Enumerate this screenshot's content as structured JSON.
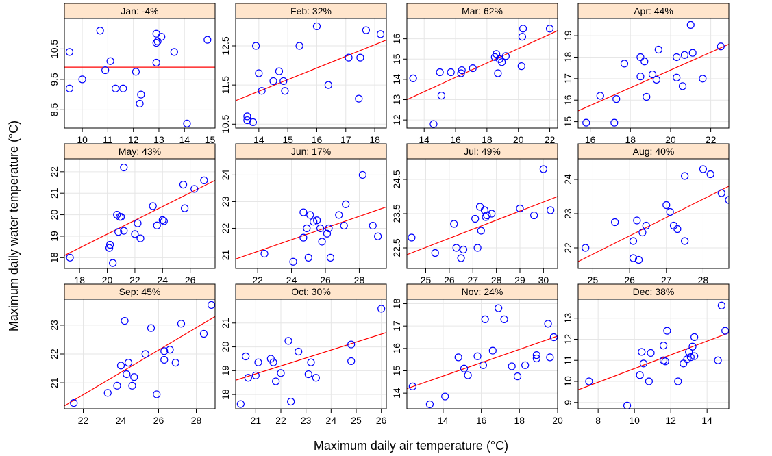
{
  "xlabel": "Maximum daily air temperature (°C)",
  "ylabel": "Maximum daily water temperature (°C)",
  "colors": {
    "strip": "#ffe5cc",
    "point": "#0000ff",
    "fit_line": "#ff0000",
    "grid": "#e6e6e6"
  },
  "chart_data": [
    {
      "type": "scatter",
      "title": "Jan: -4%",
      "xlim": [
        9.3,
        15.2
      ],
      "ylim": [
        7.9,
        11.5
      ],
      "xticks": [
        10,
        11,
        12,
        13,
        14,
        15
      ],
      "yticks": [
        8.5,
        9.5,
        10.5
      ],
      "points": [
        [
          10.7,
          11.1
        ],
        [
          9.5,
          10.4
        ],
        [
          13.6,
          10.4
        ],
        [
          14.9,
          10.8
        ],
        [
          12.9,
          11.0
        ],
        [
          13.1,
          10.9
        ],
        [
          12.9,
          10.7
        ],
        [
          12.95,
          10.75
        ],
        [
          11.1,
          10.1
        ],
        [
          12.9,
          10.05
        ],
        [
          10.9,
          9.8
        ],
        [
          12.1,
          9.75
        ],
        [
          10.0,
          9.5
        ],
        [
          9.5,
          9.2
        ],
        [
          11.3,
          9.2
        ],
        [
          11.6,
          9.2
        ],
        [
          12.3,
          9.0
        ],
        [
          12.25,
          8.7
        ],
        [
          14.1,
          8.05
        ]
      ],
      "fit": [
        [
          9.3,
          9.9
        ],
        [
          15.2,
          9.9
        ]
      ]
    },
    {
      "type": "scatter",
      "title": "Feb: 32%",
      "xlim": [
        13.2,
        18.4
      ],
      "ylim": [
        10.4,
        13.2
      ],
      "xticks": [
        14,
        15,
        16,
        17,
        18
      ],
      "yticks": [
        10.5,
        11.5,
        12.5
      ],
      "points": [
        [
          16.0,
          13.0
        ],
        [
          17.7,
          12.9
        ],
        [
          18.2,
          12.8
        ],
        [
          13.9,
          12.5
        ],
        [
          15.4,
          12.5
        ],
        [
          17.1,
          12.2
        ],
        [
          17.5,
          12.2
        ],
        [
          14.0,
          11.8
        ],
        [
          14.7,
          11.85
        ],
        [
          14.5,
          11.6
        ],
        [
          14.85,
          11.6
        ],
        [
          16.4,
          11.5
        ],
        [
          14.1,
          11.35
        ],
        [
          14.9,
          11.35
        ],
        [
          17.45,
          11.15
        ],
        [
          13.6,
          10.7
        ],
        [
          13.6,
          10.6
        ],
        [
          13.8,
          10.55
        ]
      ],
      "fit": [
        [
          13.2,
          11.1
        ],
        [
          18.4,
          12.65
        ]
      ]
    },
    {
      "type": "scatter",
      "title": "Mar: 62%",
      "xlim": [
        12.9,
        22.5
      ],
      "ylim": [
        11.6,
        17.0
      ],
      "xticks": [
        14,
        16,
        18,
        20,
        22
      ],
      "yticks": [
        12,
        13,
        14,
        15,
        16
      ],
      "points": [
        [
          20.3,
          16.5
        ],
        [
          22.0,
          16.5
        ],
        [
          20.25,
          16.1
        ],
        [
          18.6,
          15.25
        ],
        [
          18.5,
          15.1
        ],
        [
          19.2,
          15.15
        ],
        [
          18.8,
          15.0
        ],
        [
          18.95,
          14.85
        ],
        [
          20.2,
          14.65
        ],
        [
          17.1,
          14.55
        ],
        [
          16.4,
          14.45
        ],
        [
          15.7,
          14.35
        ],
        [
          15.0,
          14.35
        ],
        [
          16.35,
          14.3
        ],
        [
          18.7,
          14.3
        ],
        [
          13.3,
          14.05
        ],
        [
          15.1,
          13.2
        ],
        [
          14.6,
          11.8
        ]
      ],
      "fit": [
        [
          12.9,
          13.0
        ],
        [
          22.5,
          16.4
        ]
      ]
    },
    {
      "type": "scatter",
      "title": "Apr: 44%",
      "xlim": [
        15.4,
        22.9
      ],
      "ylim": [
        14.7,
        19.8
      ],
      "xticks": [
        16,
        18,
        20,
        22
      ],
      "yticks": [
        15,
        16,
        17,
        18,
        19
      ],
      "points": [
        [
          21.0,
          19.5
        ],
        [
          22.5,
          18.5
        ],
        [
          19.4,
          18.35
        ],
        [
          21.1,
          18.2
        ],
        [
          20.7,
          18.1
        ],
        [
          20.3,
          18.0
        ],
        [
          18.5,
          18.0
        ],
        [
          18.7,
          17.8
        ],
        [
          17.7,
          17.7
        ],
        [
          18.5,
          17.1
        ],
        [
          19.1,
          17.2
        ],
        [
          19.3,
          16.95
        ],
        [
          20.3,
          17.05
        ],
        [
          21.6,
          17.0
        ],
        [
          20.6,
          16.65
        ],
        [
          16.5,
          16.2
        ],
        [
          17.3,
          16.05
        ],
        [
          18.8,
          16.15
        ],
        [
          15.8,
          14.95
        ],
        [
          17.2,
          14.95
        ]
      ],
      "fit": [
        [
          15.4,
          15.5
        ],
        [
          22.9,
          18.6
        ]
      ]
    },
    {
      "type": "scatter",
      "title": "May: 43%",
      "xlim": [
        16.9,
        27.8
      ],
      "ylim": [
        17.5,
        22.6
      ],
      "xticks": [
        18,
        20,
        22,
        24,
        26
      ],
      "yticks": [
        18,
        19,
        20,
        21,
        22
      ],
      "points": [
        [
          21.2,
          22.2
        ],
        [
          27.0,
          21.6
        ],
        [
          25.5,
          21.4
        ],
        [
          26.3,
          21.2
        ],
        [
          23.3,
          20.4
        ],
        [
          25.6,
          20.3
        ],
        [
          20.7,
          20.0
        ],
        [
          21.0,
          19.9
        ],
        [
          20.9,
          19.9
        ],
        [
          22.2,
          19.6
        ],
        [
          24.1,
          19.7
        ],
        [
          24.0,
          19.75
        ],
        [
          23.6,
          19.5
        ],
        [
          21.2,
          19.25
        ],
        [
          20.8,
          19.2
        ],
        [
          22.0,
          19.1
        ],
        [
          22.4,
          18.9
        ],
        [
          20.2,
          18.6
        ],
        [
          20.15,
          18.45
        ],
        [
          17.3,
          18.0
        ],
        [
          20.4,
          17.75
        ]
      ],
      "fit": [
        [
          16.9,
          18.1
        ],
        [
          27.8,
          21.6
        ]
      ]
    },
    {
      "type": "scatter",
      "title": "Jun: 17%",
      "xlim": [
        20.7,
        29.6
      ],
      "ylim": [
        20.5,
        24.6
      ],
      "xticks": [
        22,
        24,
        26,
        28
      ],
      "yticks": [
        21,
        22,
        23,
        24
      ],
      "points": [
        [
          28.2,
          24.0
        ],
        [
          27.2,
          22.9
        ],
        [
          24.7,
          22.6
        ],
        [
          25.1,
          22.5
        ],
        [
          26.8,
          22.5
        ],
        [
          25.5,
          22.3
        ],
        [
          25.3,
          22.25
        ],
        [
          24.9,
          22.0
        ],
        [
          25.7,
          22.0
        ],
        [
          26.2,
          22.0
        ],
        [
          27.1,
          22.1
        ],
        [
          28.8,
          22.1
        ],
        [
          26.1,
          21.8
        ],
        [
          24.7,
          21.65
        ],
        [
          25.8,
          21.5
        ],
        [
          29.1,
          21.7
        ],
        [
          22.4,
          21.05
        ],
        [
          25.0,
          20.9
        ],
        [
          26.3,
          20.9
        ],
        [
          24.1,
          20.75
        ]
      ],
      "fit": [
        [
          20.7,
          20.85
        ],
        [
          29.6,
          22.8
        ]
      ]
    },
    {
      "type": "scatter",
      "title": "Jul: 49%",
      "xlim": [
        24.2,
        30.6
      ],
      "ylim": [
        21.9,
        25.1
      ],
      "xticks": [
        25,
        26,
        27,
        28,
        29,
        30
      ],
      "yticks": [
        22.5,
        23.5,
        24.5
      ],
      "points": [
        [
          30.0,
          24.8
        ],
        [
          29.0,
          23.65
        ],
        [
          30.3,
          23.6
        ],
        [
          27.3,
          23.7
        ],
        [
          27.5,
          23.6
        ],
        [
          27.8,
          23.5
        ],
        [
          27.6,
          23.45
        ],
        [
          27.55,
          23.4
        ],
        [
          27.1,
          23.35
        ],
        [
          26.2,
          23.2
        ],
        [
          29.6,
          23.45
        ],
        [
          27.35,
          23.0
        ],
        [
          24.4,
          22.8
        ],
        [
          26.3,
          22.5
        ],
        [
          26.6,
          22.45
        ],
        [
          27.2,
          22.5
        ],
        [
          25.4,
          22.35
        ],
        [
          26.5,
          22.2
        ]
      ],
      "fit": [
        [
          24.2,
          22.3
        ],
        [
          30.6,
          24.0
        ]
      ]
    },
    {
      "type": "scatter",
      "title": "Aug: 40%",
      "xlim": [
        24.6,
        28.7
      ],
      "ylim": [
        21.4,
        24.6
      ],
      "xticks": [
        25,
        26,
        27,
        28
      ],
      "yticks": [
        22.0,
        23.0,
        24.0
      ],
      "points": [
        [
          28.0,
          24.3
        ],
        [
          28.2,
          24.15
        ],
        [
          27.5,
          24.1
        ],
        [
          28.5,
          23.6
        ],
        [
          28.7,
          23.4
        ],
        [
          27.0,
          23.25
        ],
        [
          27.1,
          23.05
        ],
        [
          25.6,
          22.75
        ],
        [
          26.2,
          22.8
        ],
        [
          26.45,
          22.65
        ],
        [
          27.2,
          22.65
        ],
        [
          27.3,
          22.55
        ],
        [
          26.35,
          22.45
        ],
        [
          26.1,
          22.2
        ],
        [
          27.5,
          22.2
        ],
        [
          24.8,
          22.0
        ],
        [
          26.1,
          21.7
        ],
        [
          26.25,
          21.65
        ]
      ],
      "fit": [
        [
          24.6,
          21.6
        ],
        [
          28.7,
          23.8
        ]
      ]
    },
    {
      "type": "scatter",
      "title": "Sep: 45%",
      "xlim": [
        21.0,
        29.0
      ],
      "ylim": [
        20.1,
        23.9
      ],
      "xticks": [
        22,
        24,
        26,
        28
      ],
      "yticks": [
        21,
        22,
        23
      ],
      "points": [
        [
          28.8,
          23.7
        ],
        [
          24.2,
          23.15
        ],
        [
          27.2,
          23.05
        ],
        [
          25.6,
          22.9
        ],
        [
          28.4,
          22.7
        ],
        [
          26.6,
          22.15
        ],
        [
          26.3,
          22.1
        ],
        [
          25.3,
          22.0
        ],
        [
          26.3,
          21.8
        ],
        [
          26.9,
          21.7
        ],
        [
          24.4,
          21.7
        ],
        [
          24.0,
          21.6
        ],
        [
          24.3,
          21.3
        ],
        [
          24.7,
          21.2
        ],
        [
          23.8,
          20.9
        ],
        [
          24.6,
          20.9
        ],
        [
          23.3,
          20.65
        ],
        [
          25.9,
          20.6
        ],
        [
          21.5,
          20.3
        ]
      ],
      "fit": [
        [
          21.0,
          20.2
        ],
        [
          29.0,
          23.3
        ]
      ]
    },
    {
      "type": "scatter",
      "title": "Oct: 30%",
      "xlim": [
        20.2,
        26.2
      ],
      "ylim": [
        17.4,
        22.0
      ],
      "xticks": [
        21,
        22,
        23,
        24,
        25,
        26
      ],
      "yticks": [
        18,
        19,
        20,
        21
      ],
      "points": [
        [
          26.0,
          21.6
        ],
        [
          22.3,
          20.25
        ],
        [
          24.8,
          20.1
        ],
        [
          22.7,
          19.8
        ],
        [
          20.6,
          19.6
        ],
        [
          21.6,
          19.5
        ],
        [
          21.7,
          19.35
        ],
        [
          24.8,
          19.4
        ],
        [
          23.2,
          19.35
        ],
        [
          21.1,
          19.35
        ],
        [
          22.0,
          18.9
        ],
        [
          23.1,
          18.85
        ],
        [
          21.0,
          18.8
        ],
        [
          20.7,
          18.7
        ],
        [
          23.4,
          18.7
        ],
        [
          21.8,
          18.55
        ],
        [
          22.4,
          17.7
        ],
        [
          20.4,
          17.6
        ]
      ],
      "fit": [
        [
          20.2,
          18.6
        ],
        [
          26.2,
          20.6
        ]
      ]
    },
    {
      "type": "scatter",
      "title": "Nov: 24%",
      "xlim": [
        12.1,
        20.0
      ],
      "ylim": [
        13.3,
        18.2
      ],
      "xticks": [
        14,
        16,
        18,
        20
      ],
      "yticks": [
        14,
        15,
        16,
        17,
        18
      ],
      "points": [
        [
          16.9,
          17.8
        ],
        [
          16.2,
          17.3
        ],
        [
          17.2,
          17.3
        ],
        [
          19.5,
          17.1
        ],
        [
          19.8,
          16.5
        ],
        [
          16.6,
          15.9
        ],
        [
          14.8,
          15.6
        ],
        [
          15.8,
          15.65
        ],
        [
          18.9,
          15.7
        ],
        [
          19.6,
          15.6
        ],
        [
          18.9,
          15.55
        ],
        [
          16.1,
          15.25
        ],
        [
          18.3,
          15.25
        ],
        [
          17.6,
          15.2
        ],
        [
          15.1,
          15.1
        ],
        [
          15.3,
          14.8
        ],
        [
          17.9,
          14.75
        ],
        [
          12.4,
          14.3
        ],
        [
          14.1,
          13.85
        ],
        [
          13.3,
          13.5
        ]
      ],
      "fit": [
        [
          12.1,
          14.2
        ],
        [
          20.0,
          16.55
        ]
      ]
    },
    {
      "type": "scatter",
      "title": "Dec: 38%",
      "xlim": [
        6.9,
        15.2
      ],
      "ylim": [
        8.7,
        13.9
      ],
      "xticks": [
        8,
        10,
        12,
        14
      ],
      "yticks": [
        9,
        10,
        11,
        12,
        13
      ],
      "points": [
        [
          14.8,
          13.6
        ],
        [
          15.0,
          12.4
        ],
        [
          11.8,
          12.4
        ],
        [
          13.3,
          12.1
        ],
        [
          11.6,
          11.7
        ],
        [
          13.2,
          11.65
        ],
        [
          10.4,
          11.4
        ],
        [
          10.9,
          11.35
        ],
        [
          13.0,
          11.4
        ],
        [
          13.3,
          11.2
        ],
        [
          13.1,
          11.15
        ],
        [
          12.9,
          11.05
        ],
        [
          11.6,
          11.0
        ],
        [
          11.7,
          10.95
        ],
        [
          10.5,
          10.85
        ],
        [
          14.6,
          11.0
        ],
        [
          12.7,
          10.85
        ],
        [
          10.3,
          10.3
        ],
        [
          7.5,
          10.0
        ],
        [
          10.8,
          10.0
        ],
        [
          12.4,
          10.0
        ],
        [
          9.6,
          8.85
        ]
      ],
      "fit": [
        [
          6.9,
          9.6
        ],
        [
          15.2,
          12.3
        ]
      ]
    }
  ]
}
